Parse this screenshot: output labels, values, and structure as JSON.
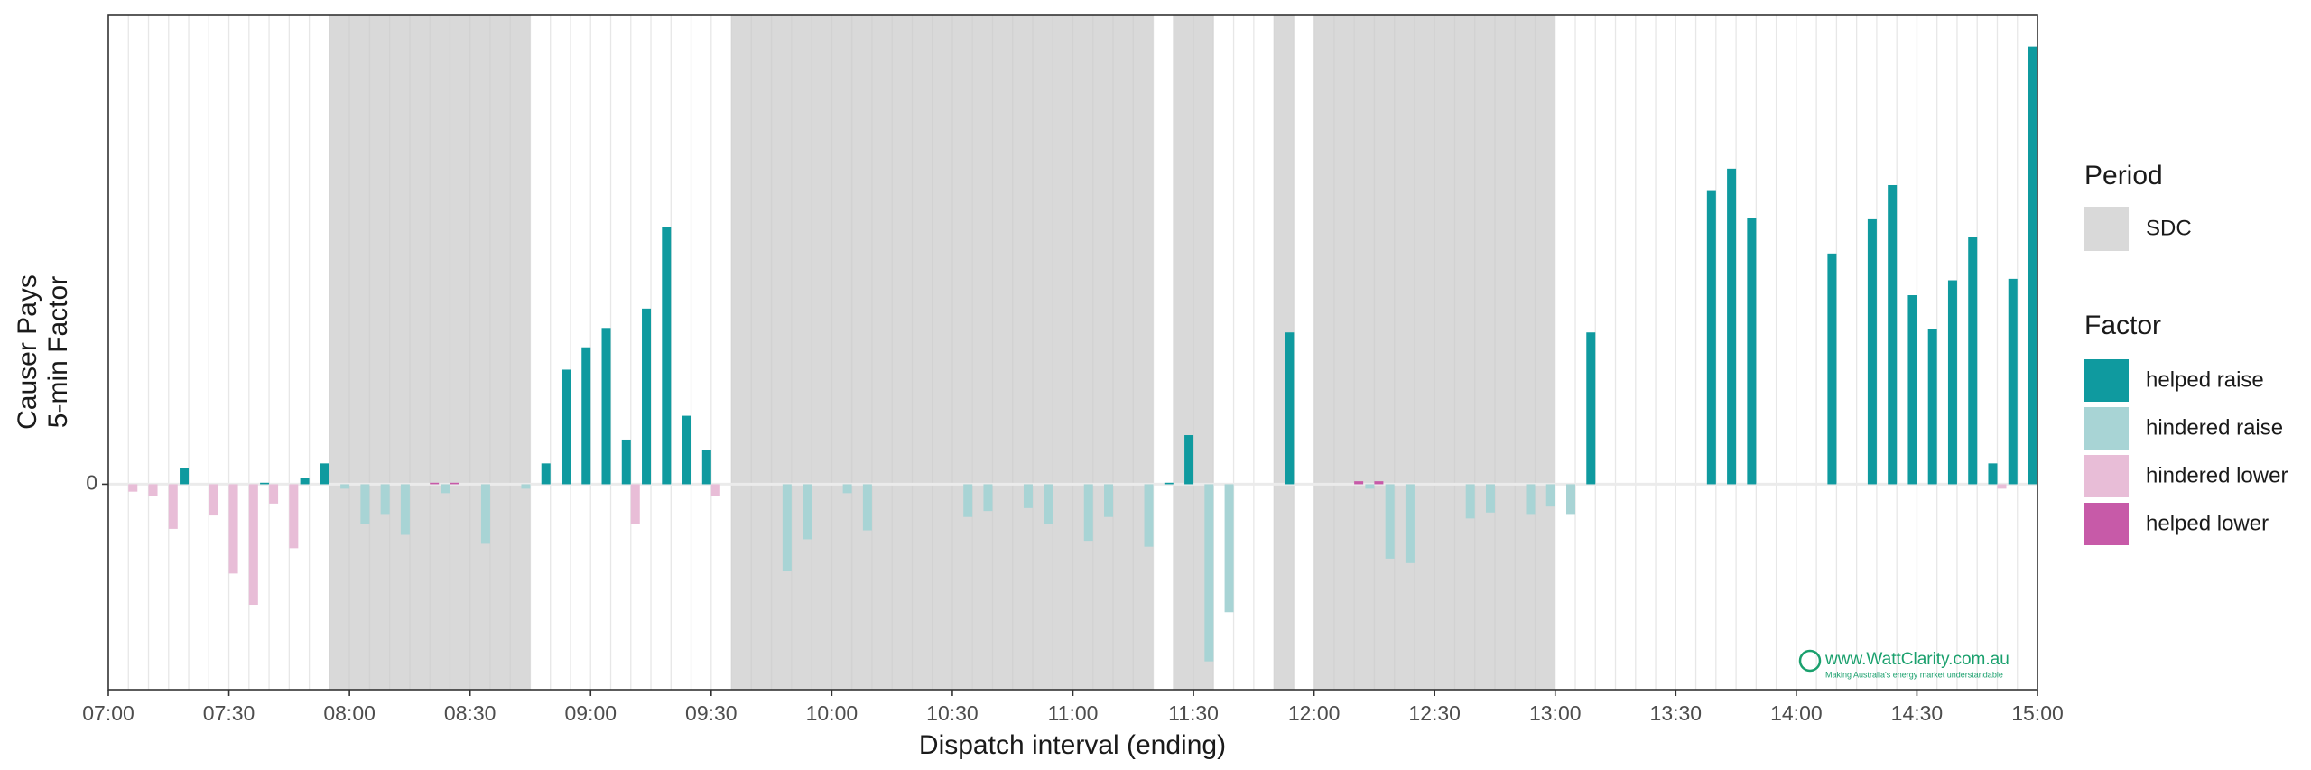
{
  "chart_data": {
    "type": "bar",
    "x_label": "Dispatch interval (ending)",
    "y_label": [
      "Causer Pays",
      "5-min Factor"
    ],
    "xlim": [
      "07:00",
      "15:00"
    ],
    "xticks": [
      "07:00",
      "07:30",
      "08:00",
      "08:30",
      "09:00",
      "09:30",
      "10:00",
      "10:30",
      "11:00",
      "11:30",
      "12:00",
      "12:30",
      "13:00",
      "13:30",
      "14:00",
      "14:30",
      "15:00"
    ],
    "ylim": [
      -138,
      315
    ],
    "yticks": [
      0
    ],
    "grid": true,
    "x": [
      "07:05",
      "07:10",
      "07:15",
      "07:20",
      "07:25",
      "07:30",
      "07:35",
      "07:40",
      "07:45",
      "07:50",
      "07:55",
      "08:00",
      "08:05",
      "08:10",
      "08:15",
      "08:20",
      "08:25",
      "08:30",
      "08:35",
      "08:40",
      "08:45",
      "08:50",
      "08:55",
      "09:00",
      "09:05",
      "09:10",
      "09:15",
      "09:20",
      "09:25",
      "09:30",
      "09:35",
      "09:40",
      "09:45",
      "09:50",
      "09:55",
      "10:00",
      "10:05",
      "10:10",
      "10:15",
      "10:20",
      "10:25",
      "10:30",
      "10:35",
      "10:40",
      "10:45",
      "10:50",
      "10:55",
      "11:00",
      "11:05",
      "11:10",
      "11:15",
      "11:20",
      "11:25",
      "11:30",
      "11:35",
      "11:40",
      "11:45",
      "11:50",
      "11:55",
      "12:00",
      "12:05",
      "12:10",
      "12:15",
      "12:20",
      "12:25",
      "12:30",
      "12:35",
      "12:40",
      "12:45",
      "12:50",
      "12:55",
      "13:00",
      "13:05",
      "13:10",
      "13:15",
      "13:20",
      "13:25",
      "13:30",
      "13:35",
      "13:40",
      "13:45",
      "13:50",
      "13:55",
      "14:00",
      "14:05",
      "14:10",
      "14:15",
      "14:20",
      "14:25",
      "14:30",
      "14:35",
      "14:40",
      "14:45",
      "14:50",
      "14:55",
      "15:00"
    ],
    "periods": {
      "legend_title": "Period",
      "name": "SDC",
      "color": "#d9d9d9",
      "ranges": [
        [
          "07:55",
          "08:45"
        ],
        [
          "09:35",
          "11:20"
        ],
        [
          "11:25",
          "11:35"
        ],
        [
          "11:50",
          "11:55"
        ],
        [
          "12:00",
          "13:00"
        ]
      ]
    },
    "legend_title": "Factor",
    "series": [
      {
        "name": "helped raise",
        "color": "#0f9a9f",
        "values": [
          null,
          null,
          null,
          11,
          null,
          null,
          null,
          1,
          null,
          4,
          14,
          null,
          null,
          null,
          null,
          null,
          null,
          null,
          null,
          null,
          null,
          14,
          77,
          92,
          105,
          30,
          118,
          173,
          46,
          23,
          null,
          null,
          null,
          null,
          null,
          null,
          null,
          null,
          null,
          null,
          null,
          null,
          null,
          null,
          null,
          null,
          null,
          null,
          null,
          null,
          null,
          null,
          1,
          33,
          null,
          null,
          null,
          null,
          102,
          null,
          null,
          null,
          null,
          null,
          null,
          null,
          null,
          null,
          null,
          null,
          null,
          null,
          null,
          102,
          null,
          null,
          null,
          null,
          null,
          197,
          212,
          179,
          null,
          null,
          null,
          155,
          null,
          178,
          201,
          127,
          104,
          137,
          166,
          14,
          138,
          294
        ]
      },
      {
        "name": "hindered raise",
        "color": "#a8d4d5",
        "values": [
          null,
          null,
          null,
          null,
          null,
          null,
          null,
          null,
          null,
          null,
          null,
          -3,
          -27,
          -20,
          -34,
          null,
          -6,
          null,
          -40,
          null,
          -3,
          null,
          null,
          null,
          null,
          null,
          null,
          null,
          null,
          null,
          null,
          null,
          null,
          -58,
          -37,
          null,
          -6,
          -31,
          null,
          null,
          null,
          null,
          -22,
          -18,
          null,
          -16,
          -27,
          null,
          -38,
          -22,
          null,
          -42,
          null,
          null,
          -119,
          -86,
          null,
          null,
          null,
          null,
          null,
          null,
          -3,
          -50,
          -53,
          null,
          null,
          -23,
          -19,
          null,
          -20,
          -15,
          -20,
          null,
          null,
          null,
          null,
          null,
          null,
          null,
          null,
          null,
          null,
          null,
          null,
          null,
          null,
          null,
          null,
          null,
          null,
          null,
          null,
          null,
          null,
          null
        ]
      },
      {
        "name": "hindered lower",
        "color": "#e8bdd7",
        "values": [
          -5,
          -8,
          -30,
          null,
          -21,
          -60,
          -81,
          -13,
          -43,
          null,
          null,
          null,
          null,
          null,
          null,
          null,
          null,
          null,
          null,
          null,
          null,
          null,
          null,
          null,
          null,
          -27,
          null,
          null,
          null,
          -8,
          null,
          null,
          null,
          null,
          null,
          null,
          null,
          null,
          null,
          null,
          null,
          null,
          null,
          null,
          null,
          null,
          null,
          null,
          null,
          null,
          null,
          null,
          null,
          null,
          null,
          null,
          null,
          null,
          null,
          null,
          null,
          null,
          null,
          null,
          null,
          null,
          null,
          null,
          null,
          null,
          null,
          null,
          null,
          null,
          null,
          null,
          null,
          null,
          null,
          null,
          null,
          null,
          null,
          null,
          null,
          null,
          null,
          null,
          null,
          null,
          null,
          null,
          null,
          -3,
          null,
          null
        ]
      },
      {
        "name": "helped lower",
        "color": "#c75aa8",
        "values": [
          null,
          null,
          null,
          null,
          null,
          null,
          null,
          null,
          null,
          null,
          null,
          null,
          null,
          null,
          null,
          1,
          1,
          null,
          null,
          null,
          null,
          null,
          null,
          null,
          null,
          null,
          null,
          null,
          null,
          null,
          null,
          null,
          null,
          null,
          null,
          null,
          null,
          null,
          null,
          null,
          null,
          null,
          null,
          null,
          null,
          null,
          null,
          null,
          null,
          null,
          null,
          null,
          null,
          null,
          null,
          null,
          null,
          null,
          null,
          null,
          null,
          2,
          2,
          null,
          null,
          null,
          null,
          null,
          null,
          null,
          null,
          null,
          null,
          null,
          null,
          null,
          null,
          null,
          null,
          null,
          null,
          null,
          null,
          null,
          null,
          null,
          null,
          null,
          null,
          null,
          null,
          null,
          null,
          null,
          null,
          null
        ]
      }
    ],
    "watermark": {
      "site": "www.WattClarity.com.au",
      "tagline": "Making Australia's energy market understandable"
    }
  }
}
